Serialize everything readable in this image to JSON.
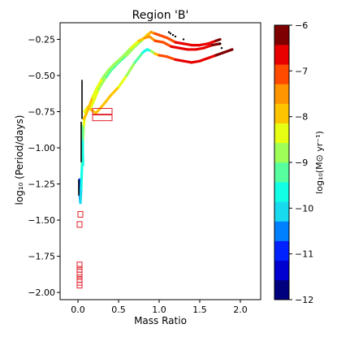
{
  "chart_data": {
    "type": "scatter",
    "title": "Region 'B'",
    "xlabel": "Mass Ratio",
    "ylabel": "log₁₀ (Period/days)",
    "xlim": [
      -0.22,
      2.25
    ],
    "ylim": [
      -2.05,
      -0.135
    ],
    "xticks": [
      0.0,
      0.5,
      1.0,
      1.5,
      2.0
    ],
    "xtick_labels": [
      "0.0",
      "0.5",
      "1.0",
      "1.5",
      "2.0"
    ],
    "yticks": [
      -0.25,
      -0.5,
      -0.75,
      -1.0,
      -1.25,
      -1.5,
      -1.75,
      -2.0
    ],
    "ytick_labels": [
      "−0.25",
      "−0.50",
      "−0.75",
      "−1.00",
      "−1.25",
      "−1.50",
      "−1.75",
      "−2.00"
    ],
    "grid": false,
    "colorbar": {
      "label": "log₁₀(M⊙ yr⁻¹)",
      "min": -12,
      "max": -6,
      "ticks": [
        -6,
        -7,
        -8,
        -9,
        -10,
        -11,
        -12
      ],
      "tick_labels": [
        "−6",
        "−7",
        "−8",
        "−9",
        "−10",
        "−11",
        "−12"
      ],
      "colors": [
        "#00007f",
        "#0000d0",
        "#0022ff",
        "#0080ff",
        "#18daef",
        "#12ffe6",
        "#58ff9f",
        "#9fff58",
        "#e6ff12",
        "#ffc400",
        "#ff9500",
        "#ff4b00",
        "#e80000",
        "#7f0000"
      ]
    },
    "tracks": [
      {
        "points": [
          [
            0.02,
            -1.22
          ],
          [
            0.02,
            -1.3
          ],
          [
            0.03,
            -1.38
          ],
          [
            0.04,
            -1.28
          ],
          [
            0.05,
            -1.12
          ],
          [
            0.06,
            -0.95
          ],
          [
            0.07,
            -0.85
          ],
          [
            0.08,
            -0.8
          ],
          [
            0.1,
            -0.76
          ],
          [
            0.13,
            -0.73
          ],
          [
            0.16,
            -0.72
          ],
          [
            0.2,
            -0.67
          ],
          [
            0.25,
            -0.6
          ],
          [
            0.3,
            -0.55
          ],
          [
            0.35,
            -0.51
          ],
          [
            0.4,
            -0.47
          ],
          [
            0.45,
            -0.44
          ],
          [
            0.5,
            -0.41
          ],
          [
            0.6,
            -0.36
          ],
          [
            0.7,
            -0.3
          ],
          [
            0.8,
            -0.25
          ],
          [
            0.85,
            -0.22
          ],
          [
            0.9,
            -0.2
          ],
          [
            0.95,
            -0.21
          ],
          [
            1.0,
            -0.22
          ],
          [
            1.05,
            -0.23
          ],
          [
            1.1,
            -0.24
          ],
          [
            1.2,
            -0.27
          ],
          [
            1.3,
            -0.28
          ],
          [
            1.4,
            -0.29
          ],
          [
            1.5,
            -0.29
          ],
          [
            1.6,
            -0.28
          ],
          [
            1.7,
            -0.26
          ],
          [
            1.75,
            -0.25
          ]
        ],
        "log_mdot": [
          -11.3,
          -10.8,
          -10.4,
          -10.0,
          -9.5,
          -9.0,
          -8.6,
          -8.3,
          -8.2,
          -8.1,
          -8.1,
          -8.4,
          -8.7,
          -8.9,
          -9.0,
          -9.1,
          -9.2,
          -9.3,
          -9.1,
          -8.9,
          -8.6,
          -8.0,
          -7.6,
          -7.2,
          -7.0,
          -7.0,
          -7.0,
          -6.9,
          -6.8,
          -6.7,
          -6.6,
          -6.5,
          -6.4,
          -6.3
        ]
      },
      {
        "points": [
          [
            0.08,
            -0.75
          ],
          [
            0.12,
            -0.72
          ],
          [
            0.17,
            -0.74
          ],
          [
            0.22,
            -0.76
          ],
          [
            0.27,
            -0.73
          ],
          [
            0.33,
            -0.69
          ],
          [
            0.4,
            -0.64
          ],
          [
            0.5,
            -0.58
          ],
          [
            0.6,
            -0.5
          ],
          [
            0.7,
            -0.41
          ],
          [
            0.8,
            -0.34
          ],
          [
            0.85,
            -0.32
          ],
          [
            0.9,
            -0.33
          ],
          [
            0.95,
            -0.35
          ],
          [
            1.0,
            -0.36
          ],
          [
            1.1,
            -0.37
          ],
          [
            1.2,
            -0.39
          ],
          [
            1.3,
            -0.4
          ],
          [
            1.4,
            -0.41
          ],
          [
            1.5,
            -0.4
          ],
          [
            1.6,
            -0.38
          ],
          [
            1.7,
            -0.36
          ],
          [
            1.8,
            -0.34
          ],
          [
            1.9,
            -0.32
          ]
        ],
        "log_mdot": [
          -8.2,
          -8.1,
          -8.0,
          -7.9,
          -7.9,
          -7.9,
          -7.9,
          -8.0,
          -8.4,
          -9.1,
          -9.6,
          -9.8,
          -9.3,
          -8.2,
          -7.4,
          -7.0,
          -6.9,
          -6.8,
          -6.7,
          -6.6,
          -6.5,
          -6.4,
          -6.35,
          -6.3
        ]
      },
      {
        "points": [
          [
            0.07,
            -0.8
          ],
          [
            0.1,
            -0.77
          ],
          [
            0.14,
            -0.71
          ],
          [
            0.18,
            -0.65
          ],
          [
            0.23,
            -0.59
          ],
          [
            0.3,
            -0.52
          ],
          [
            0.38,
            -0.46
          ],
          [
            0.45,
            -0.42
          ],
          [
            0.55,
            -0.37
          ],
          [
            0.65,
            -0.31
          ],
          [
            0.75,
            -0.26
          ],
          [
            0.82,
            -0.24
          ],
          [
            0.88,
            -0.23
          ],
          [
            0.95,
            -0.26
          ],
          [
            1.05,
            -0.27
          ],
          [
            1.15,
            -0.3
          ],
          [
            1.25,
            -0.31
          ],
          [
            1.35,
            -0.32
          ],
          [
            1.45,
            -0.32
          ],
          [
            1.55,
            -0.31
          ],
          [
            1.65,
            -0.29
          ],
          [
            1.75,
            -0.28
          ]
        ],
        "log_mdot": [
          -8.2,
          -8.0,
          -7.9,
          -8.0,
          -8.3,
          -8.6,
          -8.8,
          -8.9,
          -8.9,
          -8.7,
          -8.3,
          -7.9,
          -7.5,
          -7.1,
          -7.0,
          -6.9,
          -6.8,
          -6.7,
          -6.6,
          -6.5,
          -6.4,
          -6.35
        ]
      },
      {
        "points": [
          [
            0.05,
            -0.85
          ],
          [
            0.055,
            -0.95
          ],
          [
            0.06,
            -1.05
          ],
          [
            0.062,
            -1.12
          ]
        ],
        "log_mdot": [
          -9.0,
          -9.3,
          -9.6,
          -9.8
        ]
      }
    ],
    "black_segments": [
      [
        [
          0.05,
          -0.53
        ],
        [
          0.05,
          -0.8
        ]
      ],
      [
        [
          0.04,
          -0.82
        ],
        [
          0.04,
          -1.1
        ]
      ],
      [
        [
          0.01,
          -1.22
        ],
        [
          0.01,
          -1.33
        ]
      ]
    ],
    "black_dots": [
      [
        1.12,
        -0.2
      ],
      [
        1.14,
        -0.21
      ],
      [
        1.17,
        -0.22
      ],
      [
        1.2,
        -0.23
      ],
      [
        1.3,
        -0.25
      ],
      [
        1.75,
        -0.28
      ],
      [
        1.77,
        -0.31
      ]
    ],
    "open_squares": [
      [
        0.3,
        -0.75
      ],
      [
        0.3,
        -0.79
      ],
      [
        0.03,
        -1.46
      ],
      [
        0.02,
        -1.53
      ],
      [
        0.02,
        -1.81
      ],
      [
        0.02,
        -1.84
      ],
      [
        0.02,
        -1.86
      ],
      [
        0.02,
        -1.88
      ],
      [
        0.02,
        -1.91
      ],
      [
        0.02,
        -1.93
      ],
      [
        0.02,
        -1.95
      ]
    ]
  }
}
